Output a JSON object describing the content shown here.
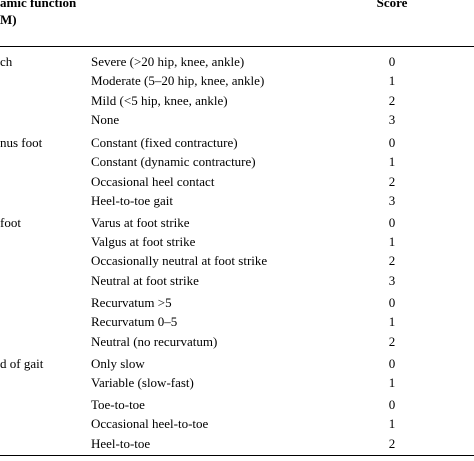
{
  "header": {
    "col1_line1": "amic function",
    "col1_line2": "M)",
    "score": "Score"
  },
  "rows": [
    {
      "cat": "ch",
      "desc": "Severe (>20 hip, knee, ankle)",
      "score": "0"
    },
    {
      "cat": "",
      "desc": "Moderate (5–20 hip, knee, ankle)",
      "score": "1"
    },
    {
      "cat": "",
      "desc": "Mild (<5 hip, knee, ankle)",
      "score": "2"
    },
    {
      "cat": "",
      "desc": "None",
      "score": "3"
    },
    {
      "cat": "nus foot",
      "desc": "Constant (fixed contracture)",
      "score": "0"
    },
    {
      "cat": "",
      "desc": "Constant (dynamic contracture)",
      "score": "1"
    },
    {
      "cat": "",
      "desc": "Occasional heel contact",
      "score": "2"
    },
    {
      "cat": "",
      "desc": "Heel-to-toe gait",
      "score": "3"
    },
    {
      "cat": "foot",
      "desc": "Varus at foot strike",
      "score": "0"
    },
    {
      "cat": "",
      "desc": "Valgus at foot strike",
      "score": "1"
    },
    {
      "cat": "",
      "desc": "Occasionally neutral at foot strike",
      "score": "2"
    },
    {
      "cat": "",
      "desc": "Neutral at foot strike",
      "score": "3"
    },
    {
      "cat": "",
      "desc": "Recurvatum >5",
      "score": "0"
    },
    {
      "cat": "",
      "desc": "Recurvatum 0–5",
      "score": "1"
    },
    {
      "cat": "",
      "desc": "Neutral (no recurvatum)",
      "score": "2"
    },
    {
      "cat": "d of gait",
      "desc": "Only slow",
      "score": "0"
    },
    {
      "cat": "",
      "desc": "Variable (slow-fast)",
      "score": "1"
    },
    {
      "cat": "",
      "desc": "Toe-to-toe",
      "score": "0"
    },
    {
      "cat": "",
      "desc": "Occasional heel-to-toe",
      "score": "1"
    },
    {
      "cat": "",
      "desc": "Heel-to-toe",
      "score": "2"
    }
  ]
}
